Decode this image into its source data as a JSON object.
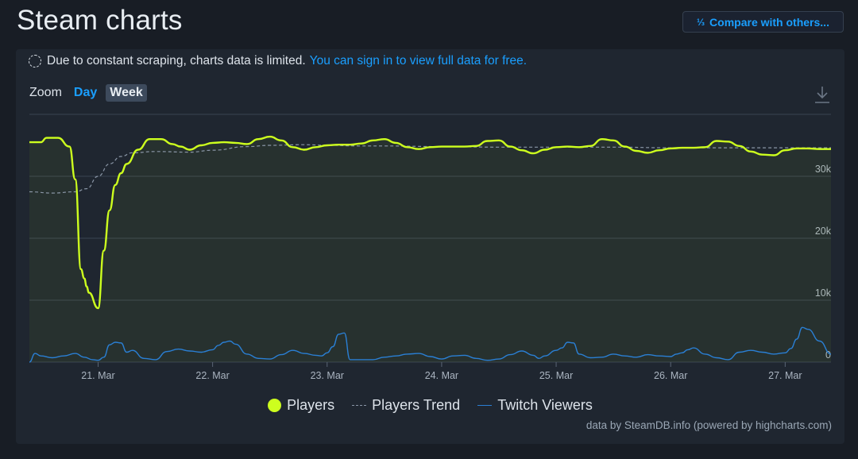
{
  "header": {
    "title": "Steam charts",
    "compare_icon": "1/2/3",
    "compare_label": "Compare with others..."
  },
  "notice": {
    "text": "Due to constant scraping, charts data is limited.",
    "link": "You can sign in to view full data for free."
  },
  "zoom": {
    "label": "Zoom",
    "options": [
      "Day",
      "Week"
    ],
    "selected": "Week"
  },
  "credits": "data by SteamDB.info (powered by highcharts.com)",
  "colors": {
    "players": "#cdff1e",
    "trend": "#8a96a6",
    "twitch": "#2a7fd4",
    "grid": "#3a4452",
    "background": "#1f2630"
  },
  "chart_data": {
    "type": "line",
    "x_tick_labels": [
      "21. Mar",
      "22. Mar",
      "23. Mar",
      "24. Mar",
      "25. Mar",
      "26. Mar",
      "27. Mar"
    ],
    "y_tick_labels": [
      "0",
      "10k",
      "20k",
      "30k"
    ],
    "ylim": [
      0,
      40000
    ],
    "xlim_days": [
      20.4,
      27.4
    ],
    "legend_position": "bottom-center",
    "grid": true,
    "series": [
      {
        "name": "Players",
        "x": [
          20.4,
          20.5,
          20.55,
          20.65,
          20.75,
          20.8,
          20.85,
          20.88,
          20.9,
          20.92,
          21.0,
          21.05,
          21.1,
          21.15,
          21.2,
          21.25,
          21.35,
          21.45,
          21.55,
          21.65,
          21.72,
          21.8,
          21.9,
          22.0,
          22.1,
          22.2,
          22.3,
          22.4,
          22.5,
          22.6,
          22.7,
          22.8,
          22.9,
          23.0,
          23.1,
          23.2,
          23.3,
          23.4,
          23.5,
          23.6,
          23.7,
          23.8,
          23.9,
          24.0,
          24.1,
          24.2,
          24.3,
          24.4,
          24.5,
          24.6,
          24.7,
          24.8,
          24.9,
          25.0,
          25.1,
          25.2,
          25.3,
          25.4,
          25.5,
          25.6,
          25.7,
          25.8,
          25.9,
          26.0,
          26.1,
          26.2,
          26.3,
          26.4,
          26.5,
          26.6,
          26.7,
          26.8,
          26.9,
          27.0,
          27.1,
          27.2,
          27.3,
          27.4
        ],
        "values": [
          35500,
          35500,
          36200,
          36200,
          34800,
          29500,
          15000,
          13500,
          12200,
          11200,
          8700,
          18000,
          24500,
          28600,
          30500,
          32000,
          34300,
          36000,
          36000,
          35200,
          34800,
          34300,
          35000,
          35400,
          35500,
          35400,
          35200,
          36000,
          36400,
          35800,
          34700,
          34300,
          34700,
          35000,
          35100,
          35100,
          35300,
          35800,
          36000,
          35400,
          34700,
          34400,
          34700,
          34800,
          34800,
          34800,
          34900,
          35700,
          35800,
          34800,
          34200,
          33700,
          34300,
          34700,
          34800,
          34700,
          34900,
          36000,
          35800,
          34800,
          34100,
          33800,
          34200,
          34500,
          34600,
          34600,
          34700,
          35700,
          35600,
          34900,
          34000,
          33500,
          33400,
          34200,
          34500,
          34500,
          34400,
          34400
        ]
      },
      {
        "name": "Players Trend",
        "x": [
          20.4,
          20.6,
          20.8,
          20.9,
          21.0,
          21.1,
          21.2,
          21.3,
          21.5,
          21.8,
          22.0,
          22.3,
          22.5,
          22.8,
          23.0,
          23.3,
          23.5,
          24.0,
          24.5,
          25.0,
          25.5,
          26.0,
          26.5,
          27.0,
          27.4
        ],
        "values": [
          27500,
          27300,
          27500,
          28000,
          30000,
          32000,
          33200,
          33800,
          34000,
          33900,
          34200,
          34800,
          35000,
          35100,
          35000,
          34900,
          34900,
          34800,
          34700,
          34700,
          34700,
          34600,
          34600,
          34600,
          34600
        ]
      },
      {
        "name": "Twitch Viewers",
        "x": [
          20.4,
          20.45,
          20.5,
          20.6,
          20.7,
          20.8,
          20.88,
          20.95,
          21.0,
          21.05,
          21.1,
          21.15,
          21.2,
          21.25,
          21.3,
          21.4,
          21.5,
          21.6,
          21.7,
          21.8,
          21.9,
          22.0,
          22.05,
          22.1,
          22.15,
          22.2,
          22.3,
          22.4,
          22.5,
          22.6,
          22.7,
          22.8,
          22.9,
          22.95,
          23.0,
          23.05,
          23.1,
          23.15,
          23.2,
          23.3,
          23.4,
          23.5,
          23.6,
          23.7,
          23.8,
          23.9,
          24.0,
          24.1,
          24.2,
          24.3,
          24.4,
          24.5,
          24.6,
          24.7,
          24.8,
          24.85,
          24.9,
          25.0,
          25.05,
          25.1,
          25.15,
          25.2,
          25.3,
          25.4,
          25.5,
          25.6,
          25.7,
          25.8,
          25.9,
          26.0,
          26.05,
          26.1,
          26.15,
          26.2,
          26.3,
          26.4,
          26.5,
          26.6,
          26.7,
          26.8,
          26.9,
          27.0,
          27.05,
          27.1,
          27.15,
          27.2,
          27.3,
          27.4
        ],
        "values": [
          0,
          1400,
          1000,
          700,
          1000,
          1400,
          800,
          400,
          300,
          800,
          2800,
          3200,
          3100,
          1600,
          1900,
          600,
          400,
          1700,
          2100,
          1800,
          1600,
          2000,
          2700,
          3200,
          3400,
          2900,
          1300,
          600,
          500,
          1200,
          1900,
          1400,
          1100,
          1000,
          1500,
          2500,
          4500,
          4700,
          400,
          400,
          400,
          800,
          1000,
          1300,
          1400,
          900,
          500,
          1000,
          1100,
          600,
          300,
          500,
          1200,
          1800,
          1100,
          600,
          1000,
          1900,
          2300,
          3200,
          3100,
          1300,
          700,
          800,
          1300,
          1000,
          800,
          1200,
          1000,
          900,
          1300,
          1500,
          2000,
          2300,
          1300,
          700,
          400,
          1600,
          1900,
          1600,
          1300,
          1500,
          2200,
          3700,
          5600,
          5300,
          3400,
          1300
        ]
      }
    ]
  }
}
